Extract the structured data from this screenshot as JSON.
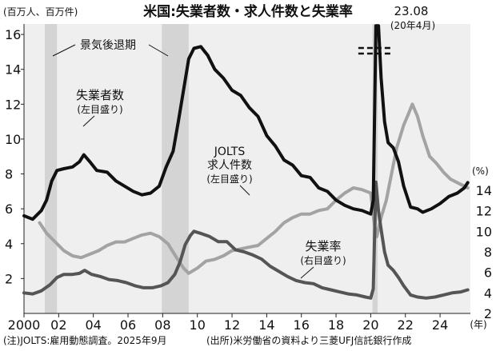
{
  "chart_data": {
    "type": "line",
    "title": "米国:失業者数・求人件数と失業率",
    "left_axis": {
      "unit_label": "(百万人、百万件)",
      "ticks": [
        2,
        4,
        6,
        8,
        10,
        12,
        14,
        16
      ],
      "ylim": [
        0,
        16
      ]
    },
    "right_axis": {
      "unit_label": "(%)",
      "ticks": [
        2,
        4,
        6,
        8,
        10,
        12,
        14
      ],
      "ylim": [
        2,
        14.5
      ]
    },
    "x_axis": {
      "unit_label": "(年)",
      "ticks": [
        {
          "value": 2000,
          "label": "2000"
        },
        {
          "value": 2002,
          "label": "02"
        },
        {
          "value": 2004,
          "label": "04"
        },
        {
          "value": 2006,
          "label": "06"
        },
        {
          "value": 2008,
          "label": "08"
        },
        {
          "value": 2010,
          "label": "10"
        },
        {
          "value": 2012,
          "label": "12"
        },
        {
          "value": 2014,
          "label": "14"
        },
        {
          "value": 2016,
          "label": "16"
        },
        {
          "value": 2018,
          "label": "18"
        },
        {
          "value": 2020,
          "label": "20"
        },
        {
          "value": 2022,
          "label": "22"
        },
        {
          "value": 2024,
          "label": "24"
        }
      ],
      "xlim": [
        2000,
        2025.75
      ]
    },
    "recessions": [
      {
        "start": 2001.2,
        "end": 2001.9
      },
      {
        "start": 2007.95,
        "end": 2009.5
      },
      {
        "start": 2020.1,
        "end": 2020.4
      }
    ],
    "series": [
      {
        "name": "失業者数",
        "axis": "left",
        "color": "#111111",
        "label": "失業者数",
        "sublabel": "(左目盛り)",
        "x": [
          2000,
          2000.5,
          2001,
          2001.3,
          2001.6,
          2001.9,
          2002.3,
          2002.8,
          2003.2,
          2003.45,
          2003.8,
          2004.2,
          2004.8,
          2005.3,
          2005.8,
          2006.3,
          2006.8,
          2007.3,
          2007.8,
          2008.2,
          2008.6,
          2008.9,
          2009.2,
          2009.5,
          2009.8,
          2010.2,
          2010.6,
          2011.0,
          2011.5,
          2012.0,
          2012.5,
          2013.0,
          2013.5,
          2014.0,
          2014.5,
          2015.0,
          2015.5,
          2016.0,
          2016.5,
          2017.0,
          2017.5,
          2018.0,
          2018.5,
          2019.0,
          2019.5,
          2020.0,
          2020.15,
          2020.3,
          2020.45,
          2020.6,
          2020.8,
          2021.0,
          2021.3,
          2021.6,
          2021.9,
          2022.3,
          2022.7,
          2023.0,
          2023.5,
          2024.0,
          2024.5,
          2025.0,
          2025.4,
          2025.6
        ],
        "y": [
          5.6,
          5.4,
          5.9,
          6.5,
          7.6,
          8.2,
          8.3,
          8.4,
          8.7,
          9.1,
          8.7,
          8.2,
          8.1,
          7.6,
          7.3,
          7.0,
          6.8,
          6.9,
          7.3,
          8.4,
          9.3,
          11.0,
          12.8,
          14.6,
          15.2,
          15.3,
          14.8,
          14.0,
          13.5,
          12.8,
          12.5,
          11.8,
          11.3,
          10.2,
          9.6,
          8.8,
          8.5,
          7.9,
          7.8,
          7.2,
          7.0,
          6.5,
          6.2,
          6.0,
          5.9,
          5.7,
          6.5,
          23.08,
          17.0,
          13.5,
          11.0,
          9.8,
          9.5,
          8.7,
          7.3,
          6.1,
          6.0,
          5.8,
          6.0,
          6.3,
          6.7,
          6.9,
          7.2,
          7.5
        ]
      },
      {
        "name": "JOLTS求人件数",
        "axis": "left",
        "color": "#a3a3a3",
        "label": "JOLTS",
        "label2": "求人件数",
        "sublabel": "(左目盛り)",
        "x": [
          2000.9,
          2001.3,
          2001.8,
          2002.3,
          2002.8,
          2003.3,
          2003.8,
          2004.3,
          2004.8,
          2005.3,
          2005.8,
          2006.3,
          2006.8,
          2007.3,
          2007.8,
          2008.3,
          2008.8,
          2009.2,
          2009.5,
          2010.0,
          2010.5,
          2011.0,
          2011.5,
          2012.0,
          2012.5,
          2013.0,
          2013.5,
          2014.0,
          2014.5,
          2015.0,
          2015.5,
          2016.0,
          2016.5,
          2017.0,
          2017.5,
          2018.0,
          2018.5,
          2019.0,
          2019.5,
          2020.0,
          2020.2,
          2020.35,
          2020.6,
          2020.9,
          2021.2,
          2021.5,
          2021.9,
          2022.2,
          2022.4,
          2022.7,
          2023.0,
          2023.4,
          2023.8,
          2024.2,
          2024.6,
          2025.0,
          2025.4,
          2025.6
        ],
        "y": [
          5.2,
          4.6,
          4.1,
          3.6,
          3.3,
          3.2,
          3.4,
          3.6,
          3.9,
          4.1,
          4.1,
          4.3,
          4.5,
          4.6,
          4.4,
          4.0,
          3.2,
          2.6,
          2.3,
          2.6,
          3.0,
          3.1,
          3.3,
          3.6,
          3.7,
          3.8,
          3.9,
          4.3,
          4.7,
          5.2,
          5.5,
          5.7,
          5.7,
          5.9,
          6.0,
          6.5,
          6.9,
          7.2,
          7.1,
          6.9,
          5.2,
          4.4,
          5.5,
          6.5,
          8.0,
          9.5,
          10.8,
          11.5,
          12.0,
          11.3,
          10.2,
          9.0,
          8.6,
          8.1,
          7.7,
          7.5,
          7.3,
          7.2
        ]
      },
      {
        "name": "失業率",
        "axis": "right",
        "color": "#555555",
        "label": "失業率",
        "sublabel": "(右目盛り)",
        "x": [
          2000,
          2000.5,
          2001,
          2001.5,
          2001.9,
          2002.3,
          2002.8,
          2003.2,
          2003.5,
          2003.9,
          2004.4,
          2004.9,
          2005.4,
          2005.9,
          2006.4,
          2006.9,
          2007.4,
          2007.9,
          2008.3,
          2008.7,
          2009.0,
          2009.3,
          2009.6,
          2009.8,
          2010.2,
          2010.7,
          2011.2,
          2011.7,
          2012.2,
          2012.7,
          2013.2,
          2013.7,
          2014.2,
          2014.7,
          2015.2,
          2015.7,
          2016.2,
          2016.7,
          2017.2,
          2017.7,
          2018.2,
          2018.7,
          2019.2,
          2019.7,
          2020.0,
          2020.15,
          2020.3,
          2020.45,
          2020.6,
          2020.8,
          2021.0,
          2021.3,
          2021.6,
          2021.9,
          2022.3,
          2022.7,
          2023.2,
          2023.7,
          2024.2,
          2024.7,
          2025.2,
          2025.6
        ],
        "y": [
          4.0,
          3.9,
          4.2,
          4.8,
          5.5,
          5.8,
          5.8,
          5.9,
          6.2,
          5.8,
          5.6,
          5.3,
          5.2,
          5.0,
          4.7,
          4.5,
          4.5,
          4.7,
          5.0,
          5.8,
          7.0,
          8.7,
          9.6,
          10.0,
          9.8,
          9.5,
          9.0,
          9.0,
          8.2,
          8.0,
          7.7,
          7.3,
          6.6,
          6.1,
          5.6,
          5.2,
          5.0,
          4.9,
          4.5,
          4.3,
          4.1,
          3.9,
          3.8,
          3.6,
          3.5,
          4.4,
          14.8,
          12.0,
          10.2,
          8.0,
          6.7,
          6.2,
          5.5,
          4.7,
          3.8,
          3.6,
          3.5,
          3.6,
          3.8,
          4.0,
          4.1,
          4.3
        ]
      }
    ],
    "annotations": {
      "recession_label": "景気後退期",
      "peak_value": "23.08",
      "peak_date": "(20年4月)"
    },
    "footnotes": {
      "note": "(注)JOLTS:雇用動態調査。2025年9月",
      "source": "(出所)米労働省の資料より三菱UFJ信託銀行作成"
    }
  }
}
